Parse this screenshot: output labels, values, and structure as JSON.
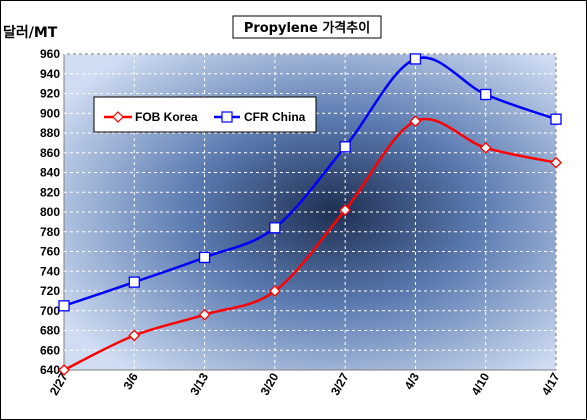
{
  "chart_data": {
    "type": "line",
    "title": "Propylene 가격추이",
    "ylabel": "달러/MT",
    "xlabel": "",
    "categories": [
      "2/27",
      "3/6",
      "3/13",
      "3/20",
      "3/27",
      "4/3",
      "4/10",
      "4/17"
    ],
    "ylim": [
      640,
      960
    ],
    "yticks": [
      640,
      660,
      680,
      700,
      720,
      740,
      760,
      780,
      800,
      820,
      840,
      860,
      880,
      900,
      920,
      940,
      960
    ],
    "grid": true,
    "legend_position": "upper-left",
    "series": [
      {
        "name": "FOB Korea",
        "values": [
          640,
          675,
          696,
          720,
          802,
          892,
          865,
          850
        ],
        "color": "#ff0000",
        "marker": "diamond"
      },
      {
        "name": "CFR China",
        "values": [
          705,
          729,
          754,
          784,
          866,
          955,
          919,
          894
        ],
        "color": "#0000ff",
        "marker": "square"
      }
    ]
  }
}
